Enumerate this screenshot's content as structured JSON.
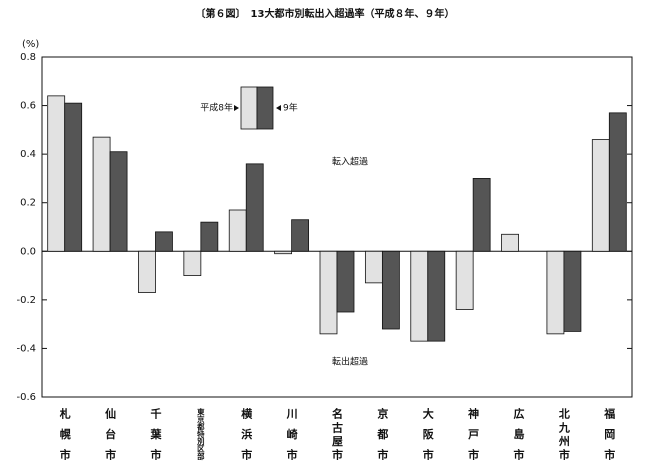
{
  "chart_data": {
    "type": "bar",
    "title": "〔第６図〕　13大都市別転出入超過率（平成８年、９年）",
    "y_label": "(%)",
    "categories": [
      "札幌市",
      "仙台市",
      "千葉市",
      "東京都特別区部",
      "横浜市",
      "川崎市",
      "名古屋市",
      "京都市",
      "大阪市",
      "神戸市",
      "広島市",
      "北九州市",
      "福岡市"
    ],
    "series": [
      {
        "name": "平成8年",
        "color": "#e2e2e2",
        "values": [
          0.64,
          0.47,
          -0.17,
          -0.1,
          0.17,
          -0.01,
          -0.34,
          -0.13,
          -0.37,
          -0.24,
          0.07,
          -0.34,
          0.46
        ]
      },
      {
        "name": "9年",
        "color": "#555555",
        "values": [
          0.61,
          0.41,
          0.08,
          0.12,
          0.36,
          0.13,
          -0.25,
          -0.32,
          -0.37,
          0.3,
          null,
          -0.33,
          0.57
        ]
      }
    ],
    "ylim": [
      -0.6,
      0.8
    ],
    "yticks": [
      -0.6,
      -0.4,
      -0.2,
      {
        "value": 0,
        "label": "0.0"
      },
      0.2,
      0.4,
      0.6,
      0.8
    ],
    "annotations": [
      "転入超過",
      "転出超過"
    ]
  }
}
